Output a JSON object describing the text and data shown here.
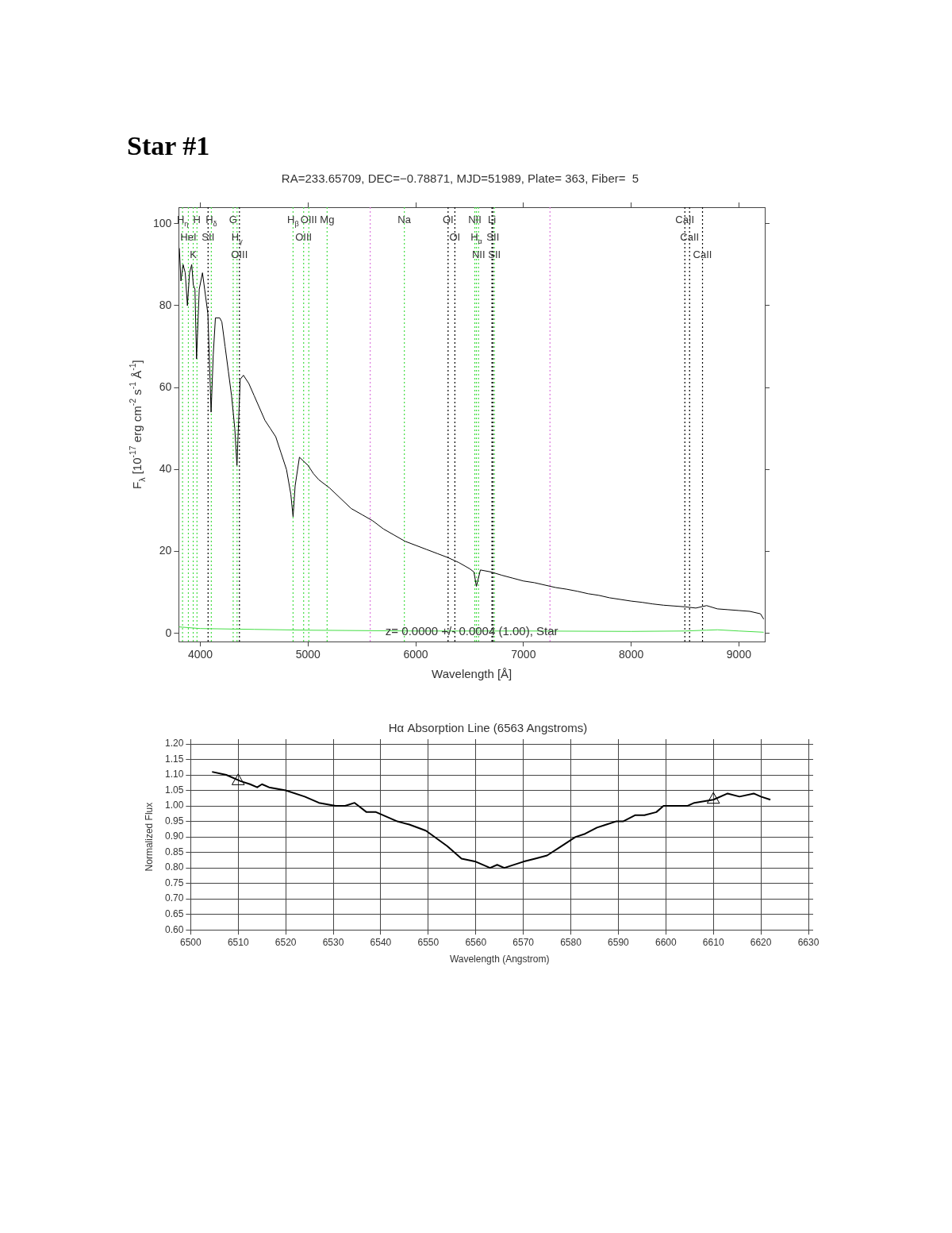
{
  "chart_data": [
    {
      "type": "line",
      "title": "Star #1",
      "subtitle": "RA=233.65709, DEC=−0.78871, MJD=51989, Plate= 363, Fiber=  5",
      "xlabel": "Wavelength [Å]",
      "ylabel": "F$_{λ}$ [10$^{-17}$ erg cm$^{-2}$ s$^{-1}$ Å$^{-1}$]",
      "series": [
        {
          "color": "#000000",
          "x": [
            3805,
            3820,
            3840,
            3860,
            3880,
            3900,
            3920,
            3935,
            3950,
            3965,
            3990,
            4020,
            4040,
            4070,
            4100,
            4120,
            4140,
            4180,
            4200,
            4230,
            4260,
            4290,
            4320,
            4340,
            4370,
            4400,
            4450,
            4500,
            4550,
            4600,
            4650,
            4700,
            4750,
            4800,
            4840,
            4861,
            4880,
            4920,
            4960,
            5000,
            5050,
            5100,
            5200,
            5300,
            5400,
            5500,
            5600,
            5700,
            5800,
            5900,
            6000,
            6100,
            6200,
            6300,
            6400,
            6500,
            6540,
            6563,
            6600,
            6700,
            6800,
            6900,
            7000,
            7100,
            7200,
            7300,
            7400,
            7500,
            7600,
            7700,
            7800,
            7900,
            8000,
            8100,
            8200,
            8300,
            8400,
            8500,
            8600,
            8700,
            8800,
            8900,
            9000,
            9100,
            9200,
            9230
          ],
          "values": [
            94,
            86,
            90,
            88,
            80,
            88,
            90,
            85,
            84,
            67,
            84,
            88,
            84,
            78,
            54,
            68,
            77,
            77,
            76,
            70,
            64,
            58,
            50,
            41,
            62,
            63,
            61,
            58,
            55,
            52,
            50,
            48,
            44,
            40,
            34,
            28.5,
            36,
            43,
            42,
            41,
            39,
            37.5,
            35.5,
            33,
            30.5,
            29,
            27.5,
            25.5,
            24,
            22.5,
            21.5,
            20.5,
            19.5,
            18.5,
            17.3,
            15.8,
            15,
            11.5,
            15.5,
            15,
            14.2,
            13.5,
            12.8,
            12.4,
            11.8,
            11.2,
            10.8,
            10.3,
            9.7,
            9.3,
            8.7,
            8.3,
            7.9,
            7.6,
            7.2,
            6.9,
            6.7,
            6.5,
            6.2,
            6.8,
            6,
            5.8,
            5.6,
            5.4,
            4.8,
            3.5
          ]
        },
        {
          "color": "#44dd44",
          "x": [
            3800,
            3850,
            4000,
            4500,
            5000,
            6000,
            7000,
            8000,
            8500,
            8700,
            8800,
            9000,
            9230
          ],
          "values": [
            1.6,
            1.5,
            1.2,
            1,
            0.8,
            0.6,
            0.6,
            0.5,
            0.6,
            0.8,
            0.9,
            0.6,
            0.3
          ]
        }
      ],
      "xlim": [
        3800,
        9240
      ],
      "ylim": [
        -2,
        104
      ],
      "xticks": [
        4000,
        5000,
        6000,
        7000,
        8000,
        9000
      ],
      "yticks": [
        0,
        20,
        40,
        60,
        80,
        100
      ],
      "grid": false,
      "legend": false,
      "marker": "none",
      "line_style": "solid",
      "ref_lines": [
        {
          "axis": "x",
          "value": 3835,
          "label": "H$_{η}$",
          "color": "#44dd44",
          "line_style": "dotted"
        },
        {
          "axis": "x",
          "value": 3889,
          "label": "HeI",
          "color": "#44dd44",
          "line_style": "dotted"
        },
        {
          "axis": "x",
          "value": 3934,
          "label": "K",
          "color": "#44dd44",
          "line_style": "dotted"
        },
        {
          "axis": "x",
          "value": 3969,
          "label": "H",
          "color": "#44dd44",
          "line_style": "dotted"
        },
        {
          "axis": "x",
          "value": 4072,
          "label": "SII",
          "color": "#000000",
          "line_style": "dotted"
        },
        {
          "axis": "x",
          "value": 4102,
          "label": "H$_{δ}$",
          "color": "#44dd44",
          "line_style": "dotted"
        },
        {
          "axis": "x",
          "value": 4305,
          "label": "G",
          "color": "#44dd44",
          "line_style": "dotted"
        },
        {
          "axis": "x",
          "value": 4341,
          "label": "H$_{γ}$",
          "color": "#44dd44",
          "line_style": "dotted"
        },
        {
          "axis": "x",
          "value": 4363,
          "label": "OIII",
          "color": "#000000",
          "line_style": "dotted"
        },
        {
          "axis": "x",
          "value": 4861,
          "label": "H$_{β}$",
          "color": "#44dd44",
          "line_style": "dotted"
        },
        {
          "axis": "x",
          "value": 4959,
          "label": "OIII",
          "color": "#44dd44",
          "line_style": "dotted"
        },
        {
          "axis": "x",
          "value": 5007,
          "label": "OIII",
          "color": "#44dd44",
          "line_style": "dotted"
        },
        {
          "axis": "x",
          "value": 5177,
          "label": "Mg",
          "color": "#44dd44",
          "line_style": "dotted"
        },
        {
          "axis": "x",
          "value": 5577,
          "color": "#dd77dd",
          "line_style": "dotted"
        },
        {
          "axis": "x",
          "value": 5894,
          "label": "Na",
          "color": "#44dd44",
          "line_style": "dotted"
        },
        {
          "axis": "x",
          "value": 6300,
          "label": "OI",
          "color": "#000000",
          "line_style": "dotted"
        },
        {
          "axis": "x",
          "value": 6363,
          "label": "OI",
          "color": "#000000",
          "line_style": "dotted"
        },
        {
          "axis": "x",
          "value": 6548,
          "label": "NII",
          "color": "#44dd44",
          "line_style": "dotted"
        },
        {
          "axis": "x",
          "value": 6563,
          "label": "H$_{α}$",
          "color": "#44dd44",
          "line_style": "dotted"
        },
        {
          "axis": "x",
          "value": 6583,
          "label": "NII",
          "color": "#44dd44",
          "line_style": "dotted"
        },
        {
          "axis": "x",
          "value": 6707,
          "label": "Li",
          "color": "#000000",
          "line_style": "dotted"
        },
        {
          "axis": "x",
          "value": 6716,
          "label": "SII",
          "color": "#000000",
          "line_style": "dotted"
        },
        {
          "axis": "x",
          "value": 6730,
          "label": "SII",
          "color": "#44dd44",
          "line_style": "dotted"
        },
        {
          "axis": "x",
          "value": 7246,
          "color": "#dd77dd",
          "line_style": "dotted"
        },
        {
          "axis": "x",
          "value": 8498,
          "label": "CaII",
          "color": "#000000",
          "line_style": "dotted"
        },
        {
          "axis": "x",
          "value": 8542,
          "label": "CaII",
          "color": "#000000",
          "line_style": "dotted"
        },
        {
          "axis": "x",
          "value": 8662,
          "label": "CaII",
          "color": "#000000",
          "line_style": "dotted"
        }
      ],
      "annotations": [
        "z= 0.0000 +/- 0.0004 (1.00), Star"
      ]
    },
    {
      "type": "line",
      "title": "Hα Absorption Line (6563 Angstroms)",
      "xlabel": "Wavelength (Angstrom)",
      "ylabel": "Normalized Flux",
      "series": [
        {
          "color": "#000000",
          "marker": "none",
          "x": [
            6504.5,
            6507.5,
            6510.5,
            6512.5,
            6514,
            6515,
            6516.5,
            6520,
            6524,
            6527,
            6530.5,
            6532.5,
            6534.5,
            6537,
            6539,
            6543.5,
            6546,
            6549.5,
            6554,
            6557,
            6560,
            6563,
            6564.5,
            6566,
            6570,
            6572.5,
            6575,
            6578,
            6581,
            6583,
            6585.5,
            6587.5,
            6589.5,
            6591,
            6593.5,
            6595.5,
            6598,
            6599.5,
            6602.5,
            6604.5,
            6606,
            6610,
            6613,
            6615.5,
            6618.5,
            6620,
            6622
          ],
          "values": [
            1.11,
            1.1,
            1.08,
            1.07,
            1.06,
            1.07,
            1.06,
            1.05,
            1.03,
            1.01,
            1.0,
            1.0,
            1.01,
            0.98,
            0.98,
            0.95,
            0.94,
            0.92,
            0.87,
            0.83,
            0.82,
            0.8,
            0.81,
            0.8,
            0.82,
            0.83,
            0.84,
            0.87,
            0.9,
            0.91,
            0.93,
            0.94,
            0.95,
            0.95,
            0.97,
            0.97,
            0.98,
            1.0,
            1.0,
            1.0,
            1.01,
            1.02,
            1.04,
            1.03,
            1.04,
            1.03,
            1.02
          ]
        },
        {
          "type": "scatter",
          "color": "#000000",
          "marker": "triangle",
          "x": [
            6510,
            6610
          ],
          "values": [
            1.08,
            1.02
          ]
        }
      ],
      "xlim": [
        6500,
        6630
      ],
      "ylim": [
        0.6,
        1.2
      ],
      "xticks": [
        6500,
        6510,
        6520,
        6530,
        6540,
        6550,
        6560,
        6570,
        6580,
        6590,
        6600,
        6610,
        6620,
        6630
      ],
      "yticks": [
        {
          "value": 0.6,
          "label": "0.60"
        },
        {
          "value": 0.65,
          "label": "0.65"
        },
        {
          "value": 0.7,
          "label": "0.70"
        },
        {
          "value": 0.75,
          "label": "0.75"
        },
        {
          "value": 0.8,
          "label": "0.80"
        },
        {
          "value": 0.85,
          "label": "0.85"
        },
        {
          "value": 0.9,
          "label": "0.90"
        },
        {
          "value": 0.95,
          "label": "0.95"
        },
        {
          "value": 1.0,
          "label": "1.00"
        },
        {
          "value": 1.05,
          "label": "1.05"
        },
        {
          "value": 1.1,
          "label": "1.10"
        },
        {
          "value": 1.15,
          "label": "1.15"
        },
        {
          "value": 1.2,
          "label": "1.20"
        }
      ],
      "grid": true,
      "legend": false,
      "line_style": "solid"
    }
  ]
}
